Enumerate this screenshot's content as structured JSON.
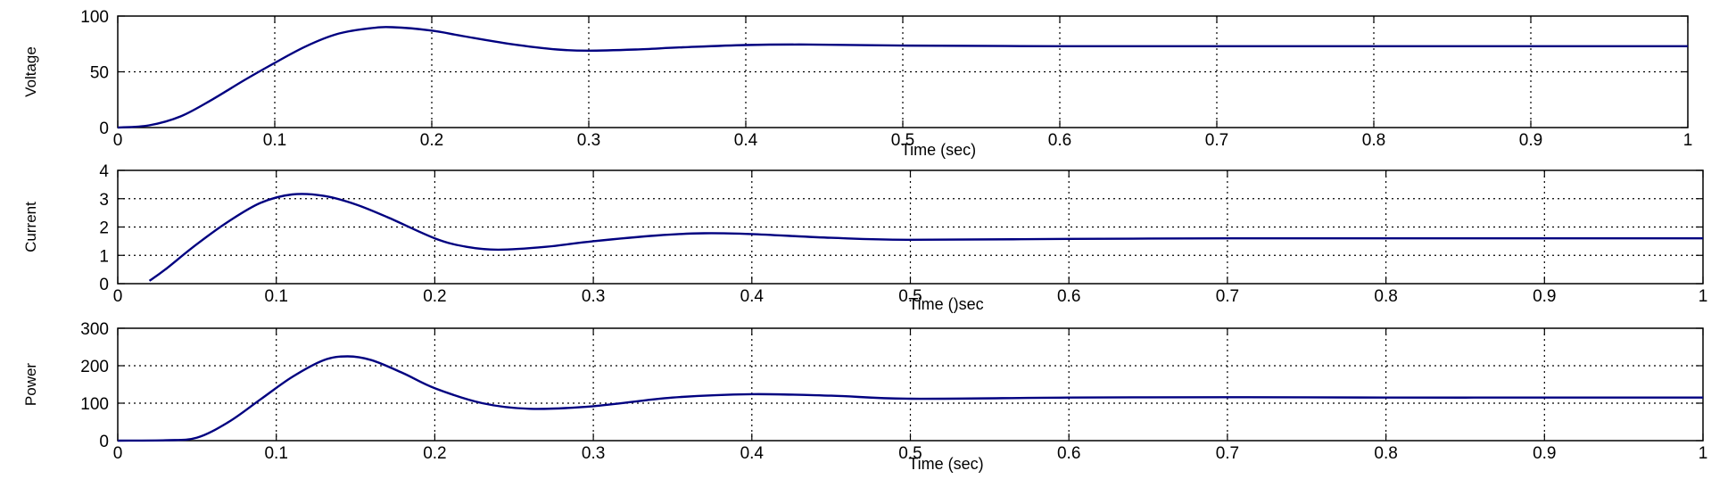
{
  "chart_data": [
    {
      "type": "line",
      "ylabel": "Voltage",
      "xlabel": "Time (sec)",
      "xlim": [
        0,
        1
      ],
      "ylim": [
        0,
        100
      ],
      "x_ticks": [
        "0",
        "0.1",
        "0.2",
        "0.3",
        "0.4",
        "0.5",
        "0.6",
        "0.7",
        "0.8",
        "0.9",
        "1"
      ],
      "y_ticks": [
        "0",
        "50",
        "100"
      ],
      "grid": true,
      "color": "#000080",
      "series": [
        {
          "x": [
            0,
            0.02,
            0.04,
            0.06,
            0.08,
            0.1,
            0.12,
            0.14,
            0.16,
            0.175,
            0.2,
            0.22,
            0.25,
            0.28,
            0.3,
            0.33,
            0.36,
            0.4,
            0.44,
            0.5,
            0.6,
            0.7,
            0.8,
            0.9,
            1.0
          ],
          "y": [
            0,
            2,
            10,
            25,
            42,
            58,
            73,
            84,
            89,
            90,
            87,
            82,
            75,
            70,
            69,
            70,
            72,
            74,
            74.5,
            73.5,
            73,
            73,
            73,
            73,
            73
          ]
        }
      ]
    },
    {
      "type": "line",
      "ylabel": "Current",
      "xlabel": "Time ()sec",
      "xlim": [
        0,
        1
      ],
      "ylim": [
        0,
        4
      ],
      "x_ticks": [
        "0",
        "0.1",
        "0.2",
        "0.3",
        "0.4",
        "0.5",
        "0.6",
        "0.7",
        "0.8",
        "0.9",
        "1"
      ],
      "y_ticks": [
        "0",
        "1",
        "2",
        "3",
        "4"
      ],
      "grid": true,
      "color": "#000080",
      "series": [
        {
          "x": [
            0.02,
            0.03,
            0.05,
            0.07,
            0.09,
            0.11,
            0.13,
            0.15,
            0.17,
            0.2,
            0.22,
            0.24,
            0.27,
            0.3,
            0.34,
            0.37,
            0.4,
            0.45,
            0.5,
            0.6,
            0.7,
            0.8,
            0.9,
            1.0
          ],
          "y": [
            0.1,
            0.5,
            1.4,
            2.2,
            2.85,
            3.15,
            3.1,
            2.8,
            2.35,
            1.6,
            1.3,
            1.2,
            1.3,
            1.5,
            1.7,
            1.78,
            1.75,
            1.62,
            1.55,
            1.58,
            1.6,
            1.6,
            1.6,
            1.6
          ]
        }
      ]
    },
    {
      "type": "line",
      "ylabel": "Power",
      "xlabel": "Time (sec)",
      "xlim": [
        0,
        1
      ],
      "ylim": [
        0,
        300
      ],
      "x_ticks": [
        "0",
        "0.1",
        "0.2",
        "0.3",
        "0.4",
        "0.5",
        "0.6",
        "0.7",
        "0.8",
        "0.9",
        "1"
      ],
      "y_ticks": [
        "0",
        "100",
        "200",
        "300"
      ],
      "grid": true,
      "color": "#000080",
      "series": [
        {
          "x": [
            0,
            0.03,
            0.05,
            0.07,
            0.09,
            0.11,
            0.13,
            0.145,
            0.16,
            0.18,
            0.2,
            0.23,
            0.26,
            0.3,
            0.35,
            0.4,
            0.45,
            0.5,
            0.6,
            0.7,
            0.8,
            0.9,
            1.0
          ],
          "y": [
            0,
            1,
            8,
            50,
            110,
            170,
            215,
            225,
            215,
            180,
            140,
            100,
            85,
            92,
            115,
            124,
            120,
            112,
            115,
            116,
            115,
            115,
            115
          ]
        }
      ]
    }
  ]
}
